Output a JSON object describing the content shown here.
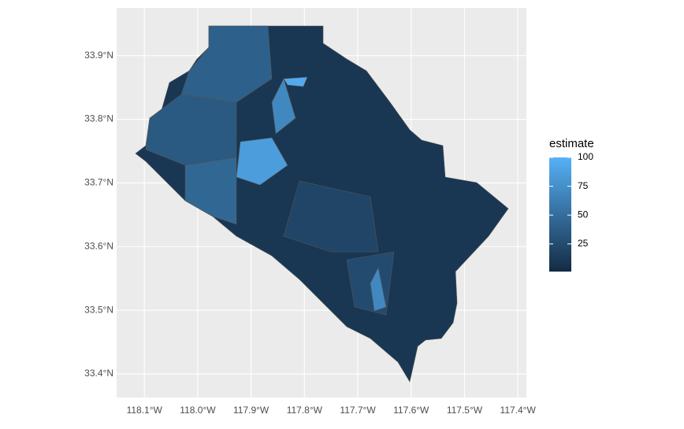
{
  "chart_data": {
    "type": "choropleth",
    "xlim": [
      -118.152,
      -117.384
    ],
    "ylim": [
      33.363,
      33.975
    ],
    "xticks": [
      {
        "value": -118.1,
        "label": "118.1°W"
      },
      {
        "value": -118.0,
        "label": "118.0°W"
      },
      {
        "value": -117.9,
        "label": "117.9°W"
      },
      {
        "value": -117.8,
        "label": "117.8°W"
      },
      {
        "value": -117.7,
        "label": "117.7°W"
      },
      {
        "value": -117.6,
        "label": "117.6°W"
      },
      {
        "value": -117.5,
        "label": "117.5°W"
      },
      {
        "value": -117.4,
        "label": "117.4°W"
      }
    ],
    "yticks": [
      {
        "value": 33.4,
        "label": "33.4°N"
      },
      {
        "value": 33.5,
        "label": "33.5°N"
      },
      {
        "value": 33.6,
        "label": "33.6°N"
      },
      {
        "value": 33.7,
        "label": "33.7°N"
      },
      {
        "value": 33.8,
        "label": "33.8°N"
      },
      {
        "value": 33.9,
        "label": "33.9°N"
      }
    ],
    "grid": true,
    "estimates": [
      10,
      40,
      35,
      85,
      70,
      95,
      45,
      20,
      25,
      70
    ],
    "legend": {
      "title": "estimate",
      "limits": [
        1,
        100
      ],
      "ticks": [
        25,
        50,
        75,
        100
      ],
      "low_color": "#132B43",
      "high_color": "#56B1F7"
    }
  }
}
